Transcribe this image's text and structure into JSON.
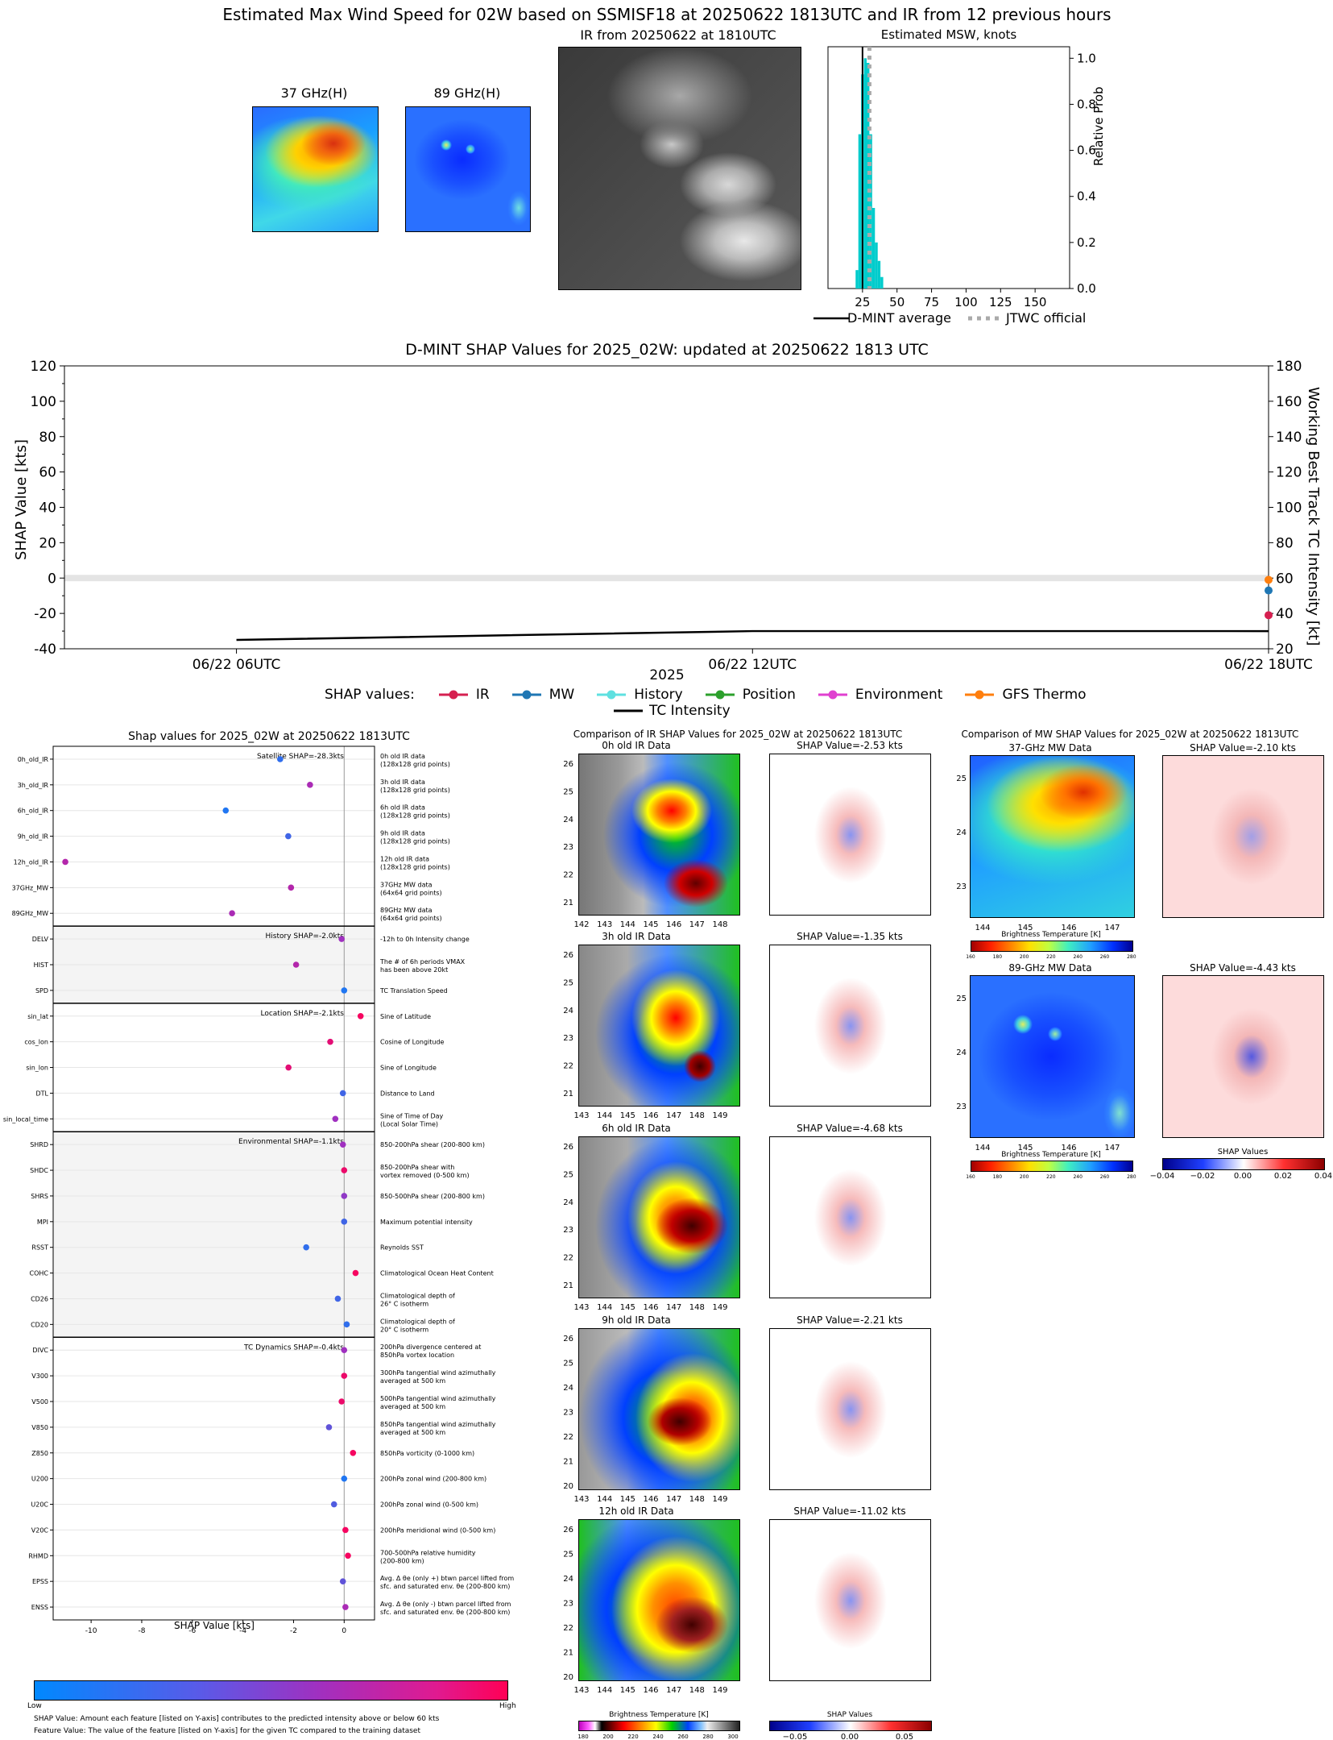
{
  "top": {
    "title": "Estimated Max Wind Speed for 02W based on SSMISF18 at 20250622 1813UTC and IR from 12 previous hours",
    "panel_37": "37 GHz(H)",
    "panel_89": "89 GHz(H)",
    "panel_ir": "IR from 20250622 at 1810UTC",
    "msw_title": "Estimated MSW, knots",
    "msw_ylabel": "Relative Prob",
    "legend_dmint": "D-MINT average",
    "legend_jtwc": "JTWC official"
  },
  "ts": {
    "title": "D-MINT SHAP Values for 2025_02W: updated at 20250622 1813 UTC",
    "ylabel_left": "SHAP Value [kts]",
    "ylabel_right": "Working Best Track TC Intensity [kt]",
    "xlabel": "2025",
    "legend_prefix": "SHAP values:",
    "legend": [
      {
        "label": "IR",
        "color": "#d62050"
      },
      {
        "label": "MW",
        "color": "#1f77b4"
      },
      {
        "label": "History",
        "color": "#5fe0e0"
      },
      {
        "label": "Position",
        "color": "#2ca02c"
      },
      {
        "label": "Environment",
        "color": "#e040d0"
      },
      {
        "label": "GFS Thermo",
        "color": "#ff7f0e"
      }
    ],
    "legend_tc": "TC Intensity"
  },
  "shap": {
    "title": "Shap values for 2025_02W at 20250622 1813UTC",
    "xlabel": "SHAP Value [kts]",
    "cbar_low": "Low",
    "cbar_high": "High",
    "footnote1": "SHAP Value: Amount each feature [listed on Y-axis] contributes to the predicted intensity above or below 60 kts",
    "footnote2": "Feature Value: The value of the feature [listed on Y-axis] for the given TC compared to the training dataset",
    "groups": [
      {
        "label": "Satellite SHAP=-28.3kts"
      },
      {
        "label": "History SHAP=-2.0kts"
      },
      {
        "label": "Location SHAP=-2.1kts"
      },
      {
        "label": "Environmental SHAP=-1.1kts"
      },
      {
        "label": "TC Dynamics SHAP=-0.4kts"
      }
    ],
    "features": [
      {
        "name": "0h_old_IR",
        "desc1": "0h old IR data",
        "desc2": "(128x128 grid points)"
      },
      {
        "name": "3h_old_IR",
        "desc1": "3h old IR data",
        "desc2": "(128x128 grid points)"
      },
      {
        "name": "6h_old_IR",
        "desc1": "6h old IR data",
        "desc2": "(128x128 grid points)"
      },
      {
        "name": "9h_old_IR",
        "desc1": "9h old IR data",
        "desc2": "(128x128 grid points)"
      },
      {
        "name": "12h_old_IR",
        "desc1": "12h old IR data",
        "desc2": "(128x128 grid points)"
      },
      {
        "name": "37GHz_MW",
        "desc1": "37GHz MW data",
        "desc2": "(64x64 grid points)"
      },
      {
        "name": "89GHz_MW",
        "desc1": "89GHz MW data",
        "desc2": "(64x64 grid points)"
      },
      {
        "name": "DELV",
        "desc1": "-12h to 0h Intensity change",
        "desc2": ""
      },
      {
        "name": "HIST",
        "desc1": "The # of 6h periods VMAX",
        "desc2": "has been above 20kt"
      },
      {
        "name": "SPD",
        "desc1": "TC Translation Speed",
        "desc2": ""
      },
      {
        "name": "sin_lat",
        "desc1": "Sine of Latitude",
        "desc2": ""
      },
      {
        "name": "cos_lon",
        "desc1": "Cosine of Longitude",
        "desc2": ""
      },
      {
        "name": "sin_lon",
        "desc1": "Sine of Longitude",
        "desc2": ""
      },
      {
        "name": "DTL",
        "desc1": "Distance to Land",
        "desc2": ""
      },
      {
        "name": "sin_local_time",
        "desc1": "Sine of Time of Day",
        "desc2": "(Local Solar Time)"
      },
      {
        "name": "SHRD",
        "desc1": "850-200hPa shear (200-800 km)",
        "desc2": ""
      },
      {
        "name": "SHDC",
        "desc1": "850-200hPa shear with",
        "desc2": "vortex removed (0-500 km)"
      },
      {
        "name": "SHRS",
        "desc1": "850-500hPa shear (200-800 km)",
        "desc2": ""
      },
      {
        "name": "MPI",
        "desc1": "Maximum potential intensity",
        "desc2": ""
      },
      {
        "name": "RSST",
        "desc1": "Reynolds SST",
        "desc2": ""
      },
      {
        "name": "COHC",
        "desc1": "Climatological Ocean Heat Content",
        "desc2": ""
      },
      {
        "name": "CD26",
        "desc1": "Climatological depth of",
        "desc2": "26° C isotherm"
      },
      {
        "name": "CD20",
        "desc1": "Climatological depth of",
        "desc2": "20° C isotherm"
      },
      {
        "name": "DIVC",
        "desc1": "200hPa divergence centered at",
        "desc2": "850hPa vortex location"
      },
      {
        "name": "V300",
        "desc1": "300hPa tangential wind azimuthally",
        "desc2": "averaged at 500 km"
      },
      {
        "name": "V500",
        "desc1": "500hPa tangential wind azimuthally",
        "desc2": "averaged at 500 km"
      },
      {
        "name": "V850",
        "desc1": "850hPa tangential wind azimuthally",
        "desc2": "averaged at 500 km"
      },
      {
        "name": "Z850",
        "desc1": "850hPa vorticity (0-1000 km)",
        "desc2": ""
      },
      {
        "name": "U200",
        "desc1": "200hPa zonal wind (200-800 km)",
        "desc2": ""
      },
      {
        "name": "U20C",
        "desc1": "200hPa zonal wind (0-500 km)",
        "desc2": ""
      },
      {
        "name": "V20C",
        "desc1": "200hPa meridional wind (0-500 km)",
        "desc2": ""
      },
      {
        "name": "RHMD",
        "desc1": "700-500hPa relative humidity",
        "desc2": "(200-800 km)"
      },
      {
        "name": "EPSS",
        "desc1": "Avg. Δ θe (only +) btwn parcel lifted from",
        "desc2": "sfc. and saturated env. θe (200-800 km)"
      },
      {
        "name": "ENSS",
        "desc1": "Avg. Δ θe (only -) btwn parcel lifted from",
        "desc2": "sfc. and saturated env. θe (200-800 km)"
      }
    ]
  },
  "ir_cmp": {
    "title": "Comparison of IR SHAP Values for 2025_02W at 20250622 1813UTC",
    "rows": [
      {
        "left": "0h old IR Data",
        "right": "SHAP Value=-2.53 kts"
      },
      {
        "left": "3h old IR Data",
        "right": "SHAP Value=-1.35 kts"
      },
      {
        "left": "6h old IR Data",
        "right": "SHAP Value=-4.68 kts"
      },
      {
        "left": "9h old IR Data",
        "right": "SHAP Value=-2.21 kts"
      },
      {
        "left": "12h old IR Data",
        "right": "SHAP Value=-11.02 kts"
      }
    ],
    "cbar_bt": "Brightness Temperature [K]",
    "cbar_shap": "SHAP Values"
  },
  "mw_cmp": {
    "title": "Comparison of MW SHAP Values for 2025_02W at 20250622 1813UTC",
    "rows": [
      {
        "left": "37-GHz MW Data",
        "right": "SHAP Value=-2.10 kts"
      },
      {
        "left": "89-GHz MW Data",
        "right": "SHAP Value=-4.43 kts"
      }
    ],
    "cbar_bt": "Brightness Temperature [K]",
    "cbar_shap": "SHAP Values"
  },
  "chart_data": [
    {
      "type": "bar",
      "title": "Estimated MSW, knots",
      "ylabel": "Relative Prob",
      "xlim": [
        0,
        175
      ],
      "ylim": [
        0,
        1.05
      ],
      "xticks": [
        25,
        50,
        75,
        100,
        125,
        150
      ],
      "yticks": [
        0.0,
        0.2,
        0.4,
        0.6,
        0.8,
        1.0
      ],
      "bins_x": [
        20,
        22,
        24,
        26,
        28,
        30,
        32,
        34,
        36,
        38
      ],
      "bins_y": [
        0.08,
        0.67,
        0.93,
        1.0,
        0.98,
        0.67,
        0.35,
        0.2,
        0.12,
        0.05
      ],
      "dmint_average": 25,
      "jtwc_official": 30
    },
    {
      "type": "line",
      "title": "D-MINT SHAP Values for 2025_02W: updated at 20250622 1813 UTC",
      "xlabel": "2025",
      "ylabel": "SHAP Value [kts]",
      "ylabel_right": "Working Best Track TC Intensity [kt]",
      "ylim": [
        -40,
        120
      ],
      "ylim_right": [
        20,
        180
      ],
      "xticks": [
        "06/22 06UTC",
        "06/22 12UTC",
        "06/22 18UTC"
      ],
      "tc_intensity_hours": [
        6,
        12,
        18
      ],
      "tc_intensity": [
        25,
        30,
        30
      ],
      "shap_points_last": [
        {
          "series": "IR",
          "value": -21
        },
        {
          "series": "MW",
          "value": -7
        },
        {
          "series": "GFS Thermo",
          "value": -1
        }
      ]
    },
    {
      "type": "scatter",
      "title": "Shap values for 2025_02W at 20250622 1813UTC",
      "xlabel": "SHAP Value [kts]",
      "xlim": [
        -11.5,
        1.2
      ],
      "xticks": [
        -10,
        -8,
        -6,
        -4,
        -2,
        0
      ],
      "features": [
        "0h_old_IR",
        "3h_old_IR",
        "6h_old_IR",
        "9h_old_IR",
        "12h_old_IR",
        "37GHz_MW",
        "89GHz_MW",
        "DELV",
        "HIST",
        "SPD",
        "sin_lat",
        "cos_lon",
        "sin_lon",
        "DTL",
        "sin_local_time",
        "SHRD",
        "SHDC",
        "SHRS",
        "MPI",
        "RSST",
        "COHC",
        "CD26",
        "CD20",
        "DIVC",
        "V300",
        "V500",
        "V850",
        "Z850",
        "U200",
        "U20C",
        "V20C",
        "RHMD",
        "EPSS",
        "ENSS"
      ],
      "shap_values": [
        -2.53,
        -1.35,
        -4.68,
        -2.21,
        -11.02,
        -2.1,
        -4.43,
        -0.1,
        -1.9,
        0.0,
        0.65,
        -0.55,
        -2.2,
        -0.05,
        -0.35,
        -0.05,
        0.0,
        0.0,
        0.0,
        -1.5,
        0.45,
        -0.25,
        0.1,
        0.0,
        0.0,
        -0.1,
        -0.6,
        0.35,
        0.0,
        -0.4,
        0.05,
        0.15,
        -0.05,
        0.05
      ],
      "feature_value_color": [
        0.15,
        0.55,
        0.1,
        0.2,
        0.6,
        0.6,
        0.55,
        0.5,
        0.6,
        0.1,
        0.95,
        0.85,
        0.85,
        0.2,
        0.5,
        0.5,
        0.9,
        0.45,
        0.2,
        0.15,
        0.95,
        0.2,
        0.15,
        0.5,
        0.9,
        0.9,
        0.3,
        0.95,
        0.1,
        0.25,
        0.95,
        0.95,
        0.3,
        0.55
      ]
    }
  ]
}
